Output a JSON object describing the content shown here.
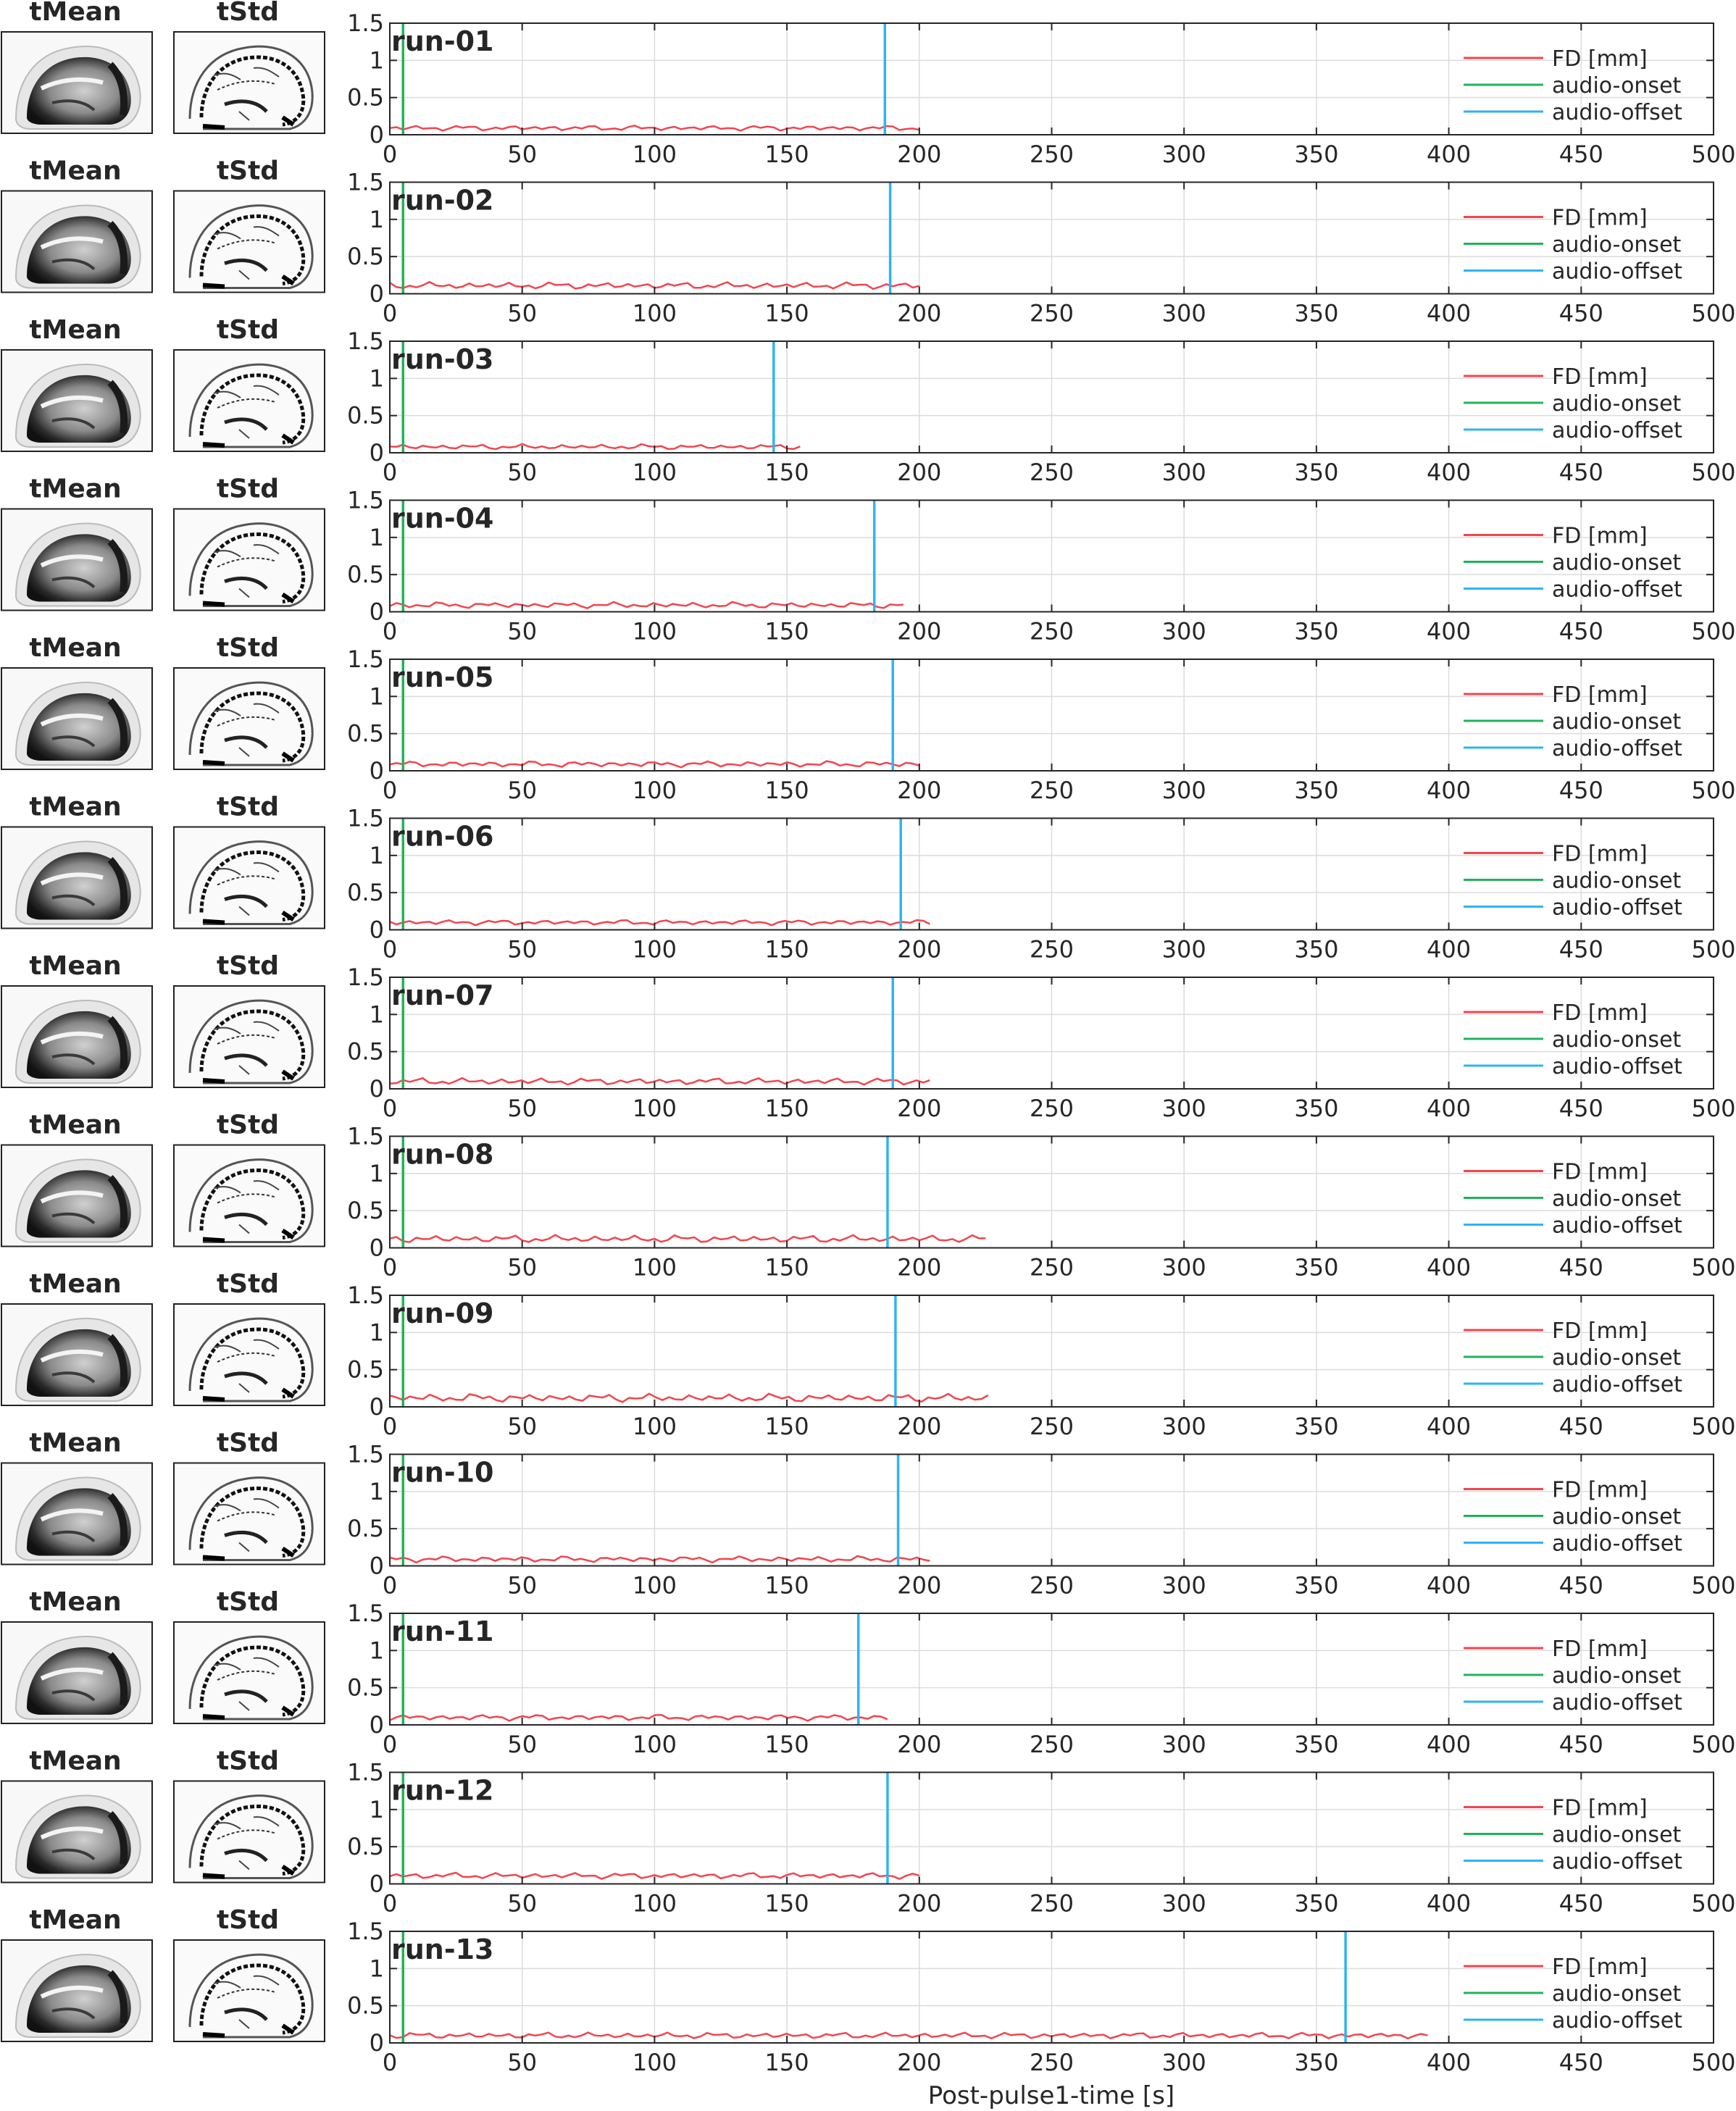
{
  "labels": {
    "mean": "tMean",
    "std": "tStd",
    "xlabel": "Post-pulse1-time [s]"
  },
  "legend": {
    "fd": "FD [mm]",
    "onset": "audio-onset",
    "offset": "audio-offset"
  },
  "colors": {
    "fd": "#f0464f",
    "onset": "#21b35a",
    "offset": "#2fb4f0",
    "grid": "#dcdcdc",
    "axis": "#262626"
  },
  "chart_data": {
    "type": "line",
    "xlabel": "Post-pulse1-time [s]",
    "xlim": [
      0,
      500
    ],
    "ylim": [
      0,
      1.5
    ],
    "xticks": [
      "0",
      "50",
      "100",
      "150",
      "200",
      "250",
      "300",
      "350",
      "400",
      "450",
      "500"
    ],
    "yticks": [
      "0",
      "0.5",
      "1",
      "1.5"
    ],
    "grid": true,
    "legend_position": "top-right",
    "series_names": [
      "FD [mm]",
      "audio-onset",
      "audio-offset"
    ],
    "runs": [
      {
        "name": "run-01",
        "onset": 5,
        "offset": 187,
        "fd_end": 200,
        "fd_level": 0.09,
        "fd_amp": 0.035
      },
      {
        "name": "run-02",
        "onset": 5,
        "offset": 189,
        "fd_end": 200,
        "fd_level": 0.11,
        "fd_amp": 0.045
      },
      {
        "name": "run-03",
        "onset": 5,
        "offset": 145,
        "fd_end": 155,
        "fd_level": 0.08,
        "fd_amp": 0.035
      },
      {
        "name": "run-04",
        "onset": 5,
        "offset": 183,
        "fd_end": 194,
        "fd_level": 0.09,
        "fd_amp": 0.04
      },
      {
        "name": "run-05",
        "onset": 5,
        "offset": 190,
        "fd_end": 200,
        "fd_level": 0.09,
        "fd_amp": 0.04
      },
      {
        "name": "run-06",
        "onset": 5,
        "offset": 193,
        "fd_end": 204,
        "fd_level": 0.1,
        "fd_amp": 0.035
      },
      {
        "name": "run-07",
        "onset": 5,
        "offset": 190,
        "fd_end": 204,
        "fd_level": 0.1,
        "fd_amp": 0.045
      },
      {
        "name": "run-08",
        "onset": 5,
        "offset": 188,
        "fd_end": 225,
        "fd_level": 0.12,
        "fd_amp": 0.05
      },
      {
        "name": "run-09",
        "onset": 5,
        "offset": 191,
        "fd_end": 226,
        "fd_level": 0.12,
        "fd_amp": 0.055
      },
      {
        "name": "run-10",
        "onset": 5,
        "offset": 192,
        "fd_end": 204,
        "fd_level": 0.09,
        "fd_amp": 0.04
      },
      {
        "name": "run-11",
        "onset": 5,
        "offset": 177,
        "fd_end": 188,
        "fd_level": 0.1,
        "fd_amp": 0.04
      },
      {
        "name": "run-12",
        "onset": 5,
        "offset": 188,
        "fd_end": 200,
        "fd_level": 0.11,
        "fd_amp": 0.04
      },
      {
        "name": "run-13",
        "onset": 5,
        "offset": 361,
        "fd_end": 392,
        "fd_level": 0.1,
        "fd_amp": 0.04
      }
    ]
  }
}
